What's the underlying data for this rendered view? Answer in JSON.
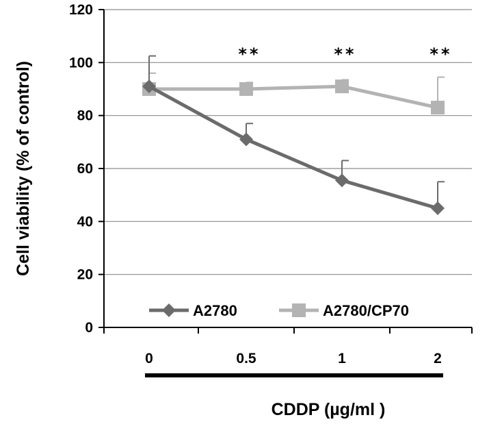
{
  "chart_data": {
    "type": "line",
    "categories": [
      "0",
      "0.5",
      "1",
      "2"
    ],
    "xlabel": "CDDP  (µg/ml )",
    "ylabel": "Cell viability  (% of control)",
    "ylim": [
      0,
      120
    ],
    "yticks": [
      "0",
      "20",
      "40",
      "60",
      "80",
      "100",
      "120"
    ],
    "grid": true,
    "legend_position": "bottom-inside",
    "series": [
      {
        "name": "A2780",
        "values": [
          91,
          71,
          55.5,
          45
        ],
        "errors": [
          11.5,
          6,
          7.5,
          10
        ],
        "marker": "diamond",
        "color": "#6b6b6b"
      },
      {
        "name": "A2780/CP70",
        "values": [
          90,
          90,
          91,
          83
        ],
        "errors": [
          6,
          2.5,
          2.5,
          11.5
        ],
        "marker": "square",
        "color": "#b3b3b3"
      }
    ],
    "annotations": [
      {
        "category": "0.5",
        "text": "**"
      },
      {
        "category": "1",
        "text": "**"
      },
      {
        "category": "2",
        "text": "**"
      }
    ]
  }
}
